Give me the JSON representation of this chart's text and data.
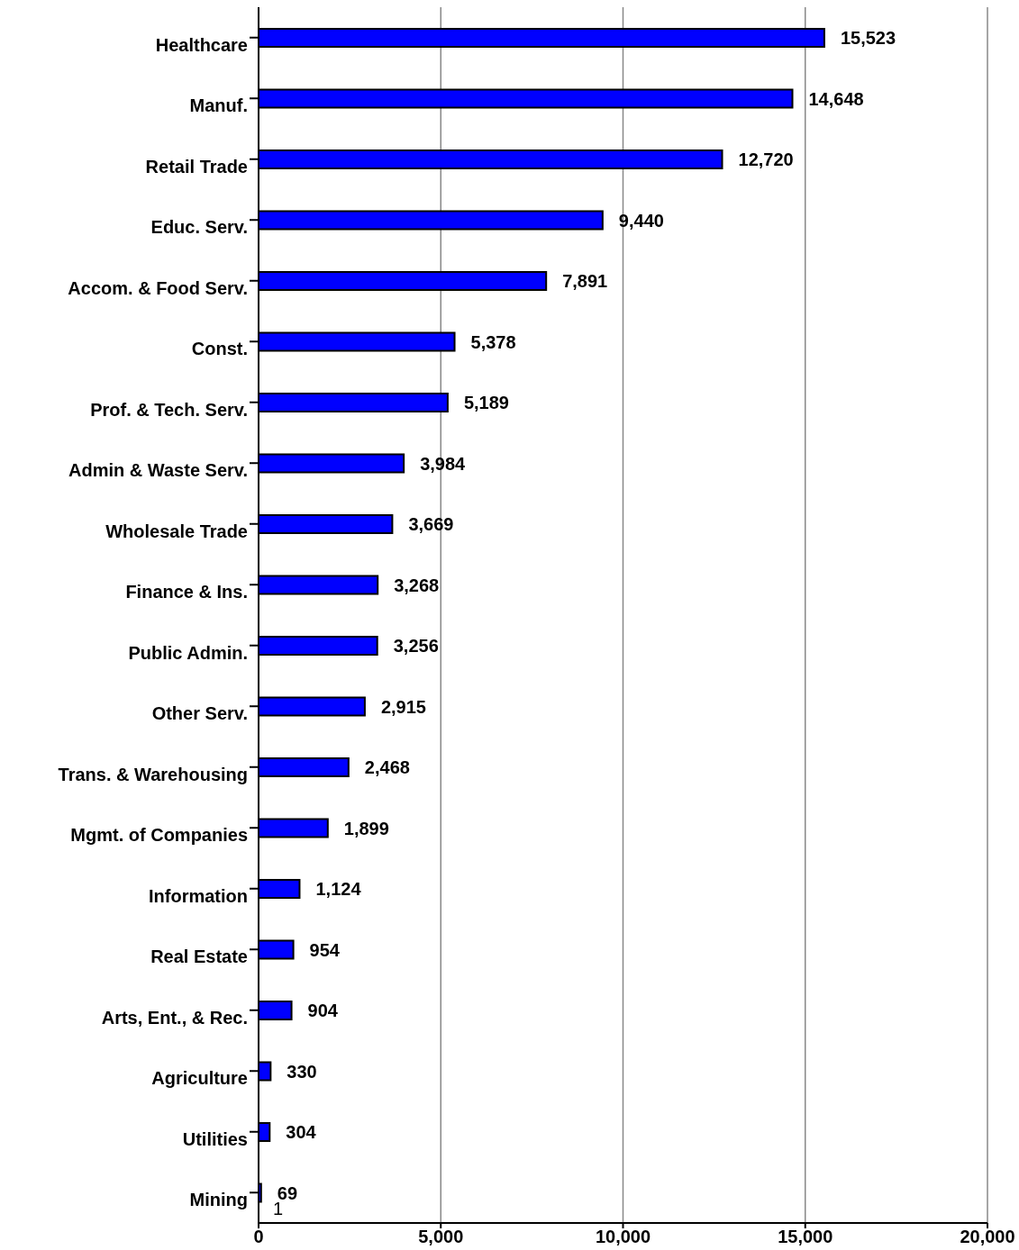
{
  "chart_data": {
    "type": "bar",
    "orientation": "horizontal",
    "categories": [
      "Healthcare",
      "Manuf.",
      "Retail Trade",
      "Educ. Serv.",
      "Accom. & Food Serv.",
      "Const.",
      "Prof.  & Tech. Serv.",
      "Admin & Waste Serv.",
      "Wholesale Trade",
      "Finance & Ins.",
      "Public Admin.",
      "Other Serv.",
      "Trans. & Warehousing",
      "Mgmt. of Companies",
      "Information",
      "Real Estate",
      "Arts, Ent., & Rec.",
      "Agriculture",
      "Utilities",
      "Mining"
    ],
    "values": [
      15523,
      14648,
      12720,
      9440,
      7891,
      5378,
      5189,
      3984,
      3669,
      3268,
      3256,
      2915,
      2468,
      1899,
      1124,
      954,
      904,
      330,
      304,
      69
    ],
    "color": "#0000ff",
    "xlim": [
      0,
      20000
    ],
    "xticks": [
      {
        "value": 0,
        "label": "0"
      },
      {
        "value": 5000,
        "label": "5,000"
      },
      {
        "value": 10000,
        "label": "10,000"
      },
      {
        "value": 15000,
        "label": "15,000"
      },
      {
        "value": 20000,
        "label": "20,000"
      }
    ],
    "value_labels": [
      "15,523",
      "14,648",
      "12,720",
      "9,440",
      "7,891",
      "5,378",
      "5,189",
      "3,984",
      "3,669",
      "3,268",
      "3,256",
      "2,915",
      "2,468",
      "1,899",
      "1,124",
      "954",
      "904",
      "330",
      "304",
      "69"
    ],
    "grid": "x",
    "annotations": [
      {
        "text": "1",
        "x": 0,
        "y": "Mining"
      }
    ]
  }
}
